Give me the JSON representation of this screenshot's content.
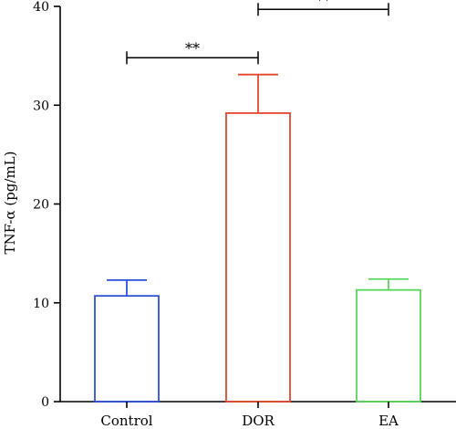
{
  "chart_data": {
    "type": "bar",
    "categories": [
      "Control",
      "DOR",
      "EA"
    ],
    "values": [
      10.7,
      29.2,
      11.3
    ],
    "errors": [
      1.6,
      3.9,
      1.1
    ],
    "colors": [
      "#2b4fd8",
      "#e5452e",
      "#56d65a"
    ],
    "ylabel": "TNF-α  (pg/mL)",
    "ylim": [
      0,
      40
    ],
    "yticks": [
      0,
      10,
      20,
      30,
      40
    ],
    "bar_style": "outline",
    "significance": [
      {
        "from": 0,
        "to": 1,
        "y": 34.8,
        "label": "**"
      },
      {
        "from": 1,
        "to": 2,
        "y": 39.7,
        "label": "**"
      }
    ]
  }
}
